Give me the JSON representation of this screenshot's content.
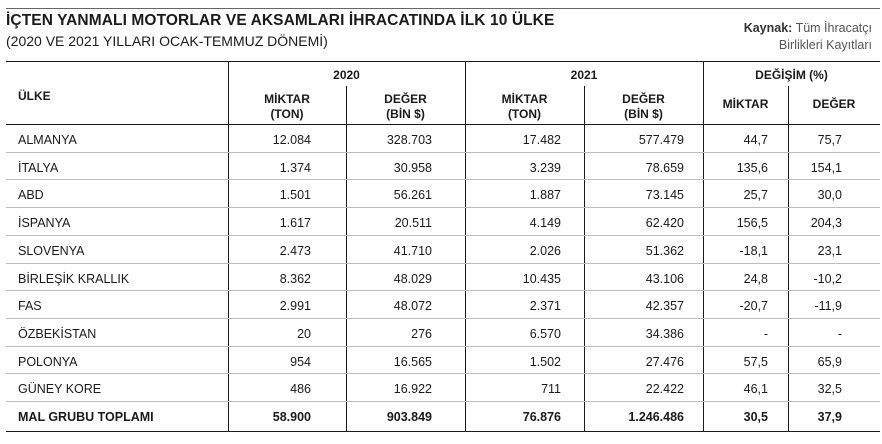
{
  "header": {
    "title": "İÇTEN YANMALI MOTORLAR VE AKSAMLARI İHRACATINDA İLK 10 ÜLKE",
    "subtitle": "(2020 VE 2021 YILLARI OCAK-TEMMUZ DÖNEMİ)",
    "source_label": "Kaynak:",
    "source_line1": "Tüm İhracatçı",
    "source_line2": "Birlikleri Kayıtları"
  },
  "columns": {
    "country": "ÜLKE",
    "groups": [
      "2020",
      "2021",
      "DEĞİŞİM (%)"
    ],
    "sub": [
      [
        "MİKTAR",
        "(TON)"
      ],
      [
        "DEĞER",
        "(BİN $)"
      ],
      [
        "MİKTAR",
        "(TON)"
      ],
      [
        "DEĞER",
        "(BİN $)"
      ],
      [
        "MİKTAR",
        ""
      ],
      [
        "DEĞER",
        ""
      ]
    ]
  },
  "rows": [
    [
      "ALMANYA",
      "12.084",
      "328.703",
      "17.482",
      "577.479",
      "44,7",
      "75,7"
    ],
    [
      "İTALYA",
      "1.374",
      "30.958",
      "3.239",
      "78.659",
      "135,6",
      "154,1"
    ],
    [
      "ABD",
      "1.501",
      "56.261",
      "1.887",
      "73.145",
      "25,7",
      "30,0"
    ],
    [
      "İSPANYA",
      "1.617",
      "20.511",
      "4.149",
      "62.420",
      "156,5",
      "204,3"
    ],
    [
      "SLOVENYA",
      "2.473",
      "41.710",
      "2.026",
      "51.362",
      "-18,1",
      "23,1"
    ],
    [
      "BİRLEŞİK KRALLIK",
      "8.362",
      "48.029",
      "10.435",
      "43.106",
      "24,8",
      "-10,2"
    ],
    [
      "FAS",
      "2.991",
      "48.072",
      "2.371",
      "42.357",
      "-20,7",
      "-11,9"
    ],
    [
      "ÖZBEKİSTAN",
      "20",
      "276",
      "6.570",
      "34.386",
      "-",
      "-"
    ],
    [
      "POLONYA",
      "954",
      "16.565",
      "1.502",
      "27.476",
      "57,5",
      "65,9"
    ],
    [
      "GÜNEY KORE",
      "486",
      "16.922",
      "711",
      "22.422",
      "46,1",
      "32,5"
    ]
  ],
  "total": [
    "MAL GRUBU TOPLAMI",
    "58.900",
    "903.849",
    "76.876",
    "1.246.486",
    "30,5",
    "37,9"
  ]
}
